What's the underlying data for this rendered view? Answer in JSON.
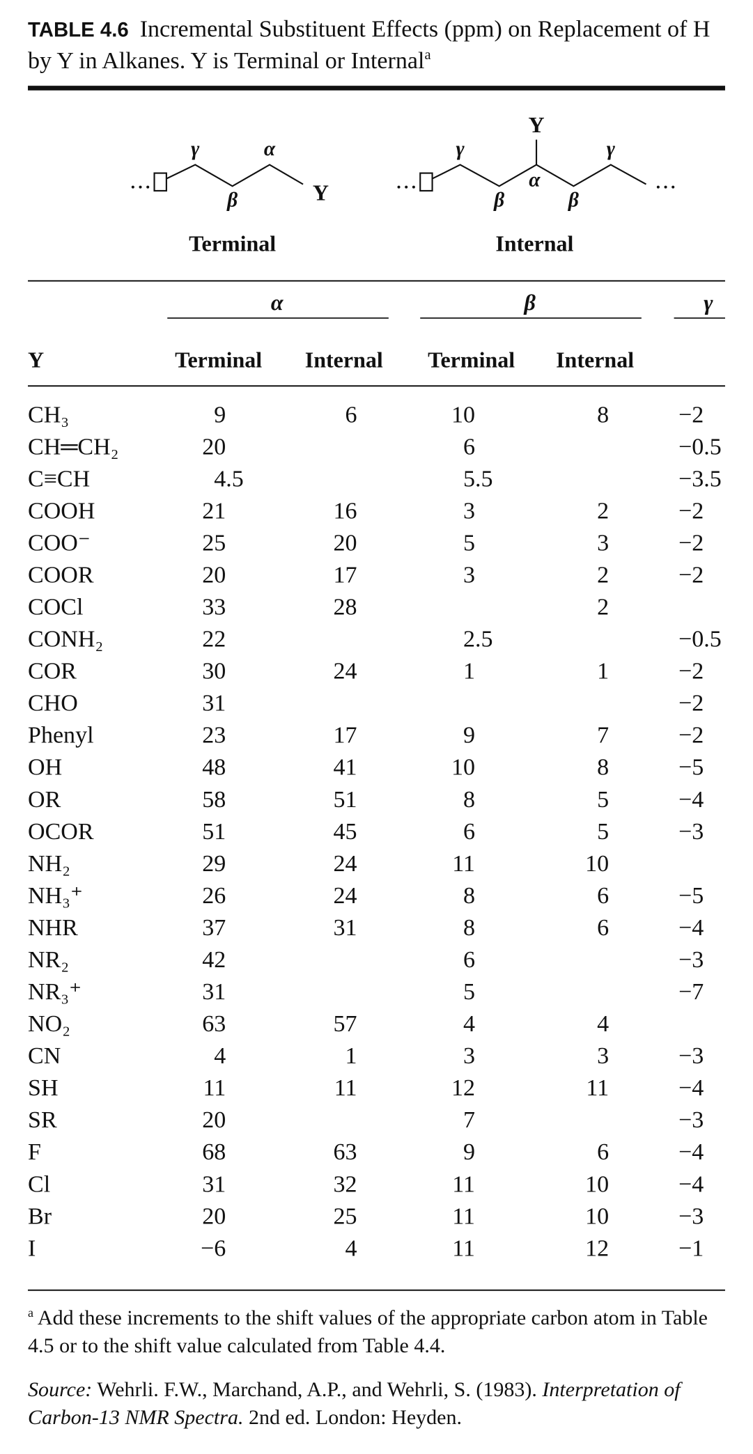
{
  "header": {
    "label": "TABLE 4.6",
    "title": "Incremental Substituent Effects (ppm) on Replacement of H by Y in Alkanes. Y is Terminal or Internal",
    "title_note": "a"
  },
  "diagram": {
    "terminal": {
      "labels": [
        "γ",
        "α",
        "β",
        "Y"
      ],
      "caption": "Terminal"
    },
    "internal": {
      "labels": [
        "Y",
        "γ",
        "α",
        "γ",
        "β",
        "β"
      ],
      "caption": "Internal"
    }
  },
  "table": {
    "groups": [
      "α",
      "β",
      "γ"
    ],
    "columns": [
      "Y",
      "Terminal",
      "Internal",
      "Terminal",
      "Internal"
    ],
    "rows": [
      [
        "CH₃",
        "9",
        "6",
        "10",
        "8",
        "−2"
      ],
      [
        "CH═CH₂",
        "20",
        null,
        "6",
        null,
        "−0.5"
      ],
      [
        "C≡CH",
        "4.5",
        null,
        "5.5",
        null,
        "−3.5"
      ],
      [
        "COOH",
        "21",
        "16",
        "3",
        "2",
        "−2"
      ],
      [
        "COO⁻",
        "25",
        "20",
        "5",
        "3",
        "−2"
      ],
      [
        "COOR",
        "20",
        "17",
        "3",
        "2",
        "−2"
      ],
      [
        "COCl",
        "33",
        "28",
        null,
        "2",
        null
      ],
      [
        "CONH₂",
        "22",
        null,
        "2.5",
        null,
        "−0.5"
      ],
      [
        "COR",
        "30",
        "24",
        "1",
        "1",
        "−2"
      ],
      [
        "CHO",
        "31",
        null,
        null,
        null,
        "−2"
      ],
      [
        "Phenyl",
        "23",
        "17",
        "9",
        "7",
        "−2"
      ],
      [
        "OH",
        "48",
        "41",
        "10",
        "8",
        "−5"
      ],
      [
        "OR",
        "58",
        "51",
        "8",
        "5",
        "−4"
      ],
      [
        "OCOR",
        "51",
        "45",
        "6",
        "5",
        "−3"
      ],
      [
        "NH₂",
        "29",
        "24",
        "11",
        "10",
        null
      ],
      [
        "NH₃⁺",
        "26",
        "24",
        "8",
        "6",
        "−5"
      ],
      [
        "NHR",
        "37",
        "31",
        "8",
        "6",
        "−4"
      ],
      [
        "NR₂",
        "42",
        null,
        "6",
        null,
        "−3"
      ],
      [
        "NR₃⁺",
        "31",
        null,
        "5",
        null,
        "−7"
      ],
      [
        "NO₂",
        "63",
        "57",
        "4",
        "4",
        null
      ],
      [
        "CN",
        "4",
        "1",
        "3",
        "3",
        "−3"
      ],
      [
        "SH",
        "11",
        "11",
        "12",
        "11",
        "−4"
      ],
      [
        "SR",
        "20",
        null,
        "7",
        null,
        "−3"
      ],
      [
        "F",
        "68",
        "63",
        "9",
        "6",
        "−4"
      ],
      [
        "Cl",
        "31",
        "32",
        "11",
        "10",
        "−4"
      ],
      [
        "Br",
        "20",
        "25",
        "11",
        "10",
        "−3"
      ],
      [
        "I",
        "−6",
        "4",
        "11",
        "12",
        "−1"
      ]
    ]
  },
  "footnote": {
    "mark": "a",
    "text": "Add these increments to the shift values of the appropriate carbon atom in Table 4.5 or to the shift value calculated from Table 4.4."
  },
  "source": {
    "label": "Source:",
    "text": "Wehrli. F.W., Marchand, A.P., and Wehrli, S. (1983).",
    "title": "Interpretation of Carbon-13 NMR Spectra.",
    "rest": "2nd ed. London: Heyden."
  }
}
